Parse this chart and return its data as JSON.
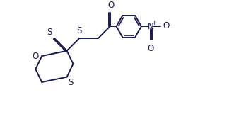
{
  "bg_color": "#ffffff",
  "line_color": "#1a1a4a",
  "line_width": 1.4,
  "font_size": 8.5,
  "figsize": [
    3.31,
    1.92
  ],
  "dpi": 100,
  "xlim": [
    0.0,
    10.0
  ],
  "ylim": [
    0.0,
    6.0
  ]
}
